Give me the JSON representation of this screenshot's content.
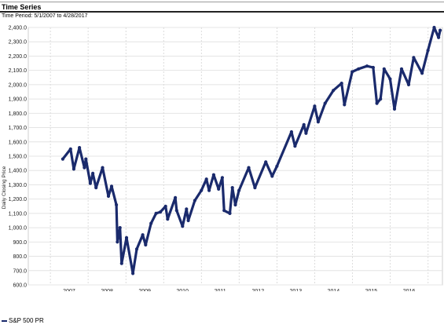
{
  "header": {
    "title": "Time Series",
    "period": "Time Period: 5/1/2007 to 4/28/2017"
  },
  "legend": {
    "label": "S&P 500 PR"
  },
  "chart_data": {
    "type": "line",
    "ylabel": "Daily Closing Price",
    "xlabel": "",
    "ylim": [
      600,
      2400
    ],
    "yticks": [
      "600.0",
      "700.0",
      "800.0",
      "900.0",
      "1,000.0",
      "1,100.0",
      "1,200.0",
      "1,300.0",
      "1,400.0",
      "1,500.0",
      "1,600.0",
      "1,700.0",
      "1,800.0",
      "1,900.0",
      "2,000.0",
      "2,100.0",
      "2,200.0",
      "2,300.0",
      "2,400.0"
    ],
    "xticks": [
      "2007",
      "2008",
      "2009",
      "2010",
      "2011",
      "2012",
      "2013",
      "2014",
      "2015",
      "2016"
    ],
    "grid": true,
    "legend_position": "bottom-left",
    "line_color": "#1a2a6c",
    "series": [
      {
        "name": "S&P 500 PR",
        "x": [
          "2007-05-01",
          "2007-07-15",
          "2007-08-15",
          "2007-10-09",
          "2007-11-26",
          "2007-12-10",
          "2008-01-22",
          "2008-02-15",
          "2008-03-17",
          "2008-05-19",
          "2008-07-15",
          "2008-08-15",
          "2008-09-30",
          "2008-10-10",
          "2008-11-04",
          "2008-11-20",
          "2009-01-06",
          "2009-03-09",
          "2009-04-15",
          "2009-06-12",
          "2009-07-10",
          "2009-08-31",
          "2009-10-19",
          "2009-11-30",
          "2010-01-19",
          "2010-02-08",
          "2010-04-23",
          "2010-05-06",
          "2010-07-02",
          "2010-08-09",
          "2010-08-27",
          "2010-10-29",
          "2010-12-31",
          "2011-02-18",
          "2011-03-16",
          "2011-04-29",
          "2011-06-16",
          "2011-07-22",
          "2011-08-08",
          "2011-10-03",
          "2011-10-27",
          "2011-11-25",
          "2011-12-30",
          "2012-04-02",
          "2012-06-01",
          "2012-09-14",
          "2012-11-15",
          "2012-12-31",
          "2013-05-21",
          "2013-06-24",
          "2013-09-18",
          "2013-10-08",
          "2013-12-31",
          "2014-02-03",
          "2014-04-11",
          "2014-06-30",
          "2014-09-18",
          "2014-10-15",
          "2014-12-29",
          "2015-02-28",
          "2015-05-21",
          "2015-07-20",
          "2015-08-25",
          "2015-09-29",
          "2015-11-03",
          "2015-12-31",
          "2016-02-11",
          "2016-04-20",
          "2016-06-27",
          "2016-08-15",
          "2016-11-04",
          "2016-12-31",
          "2017-03-01",
          "2017-04-13",
          "2017-04-28"
        ],
        "values": [
          1480,
          1550,
          1410,
          1560,
          1420,
          1480,
          1310,
          1380,
          1280,
          1420,
          1220,
          1290,
          1160,
          900,
          1000,
          750,
          930,
          680,
          850,
          950,
          880,
          1030,
          1100,
          1110,
          1150,
          1060,
          1210,
          1120,
          1010,
          1130,
          1050,
          1190,
          1260,
          1340,
          1260,
          1370,
          1270,
          1350,
          1120,
          1100,
          1280,
          1160,
          1260,
          1420,
          1280,
          1460,
          1360,
          1430,
          1670,
          1570,
          1720,
          1660,
          1850,
          1740,
          1870,
          1960,
          2010,
          1860,
          2090,
          2110,
          2130,
          2120,
          1870,
          1900,
          2110,
          2040,
          1830,
          2110,
          2000,
          2190,
          2080,
          2240,
          2400,
          2330,
          2380
        ]
      }
    ]
  }
}
